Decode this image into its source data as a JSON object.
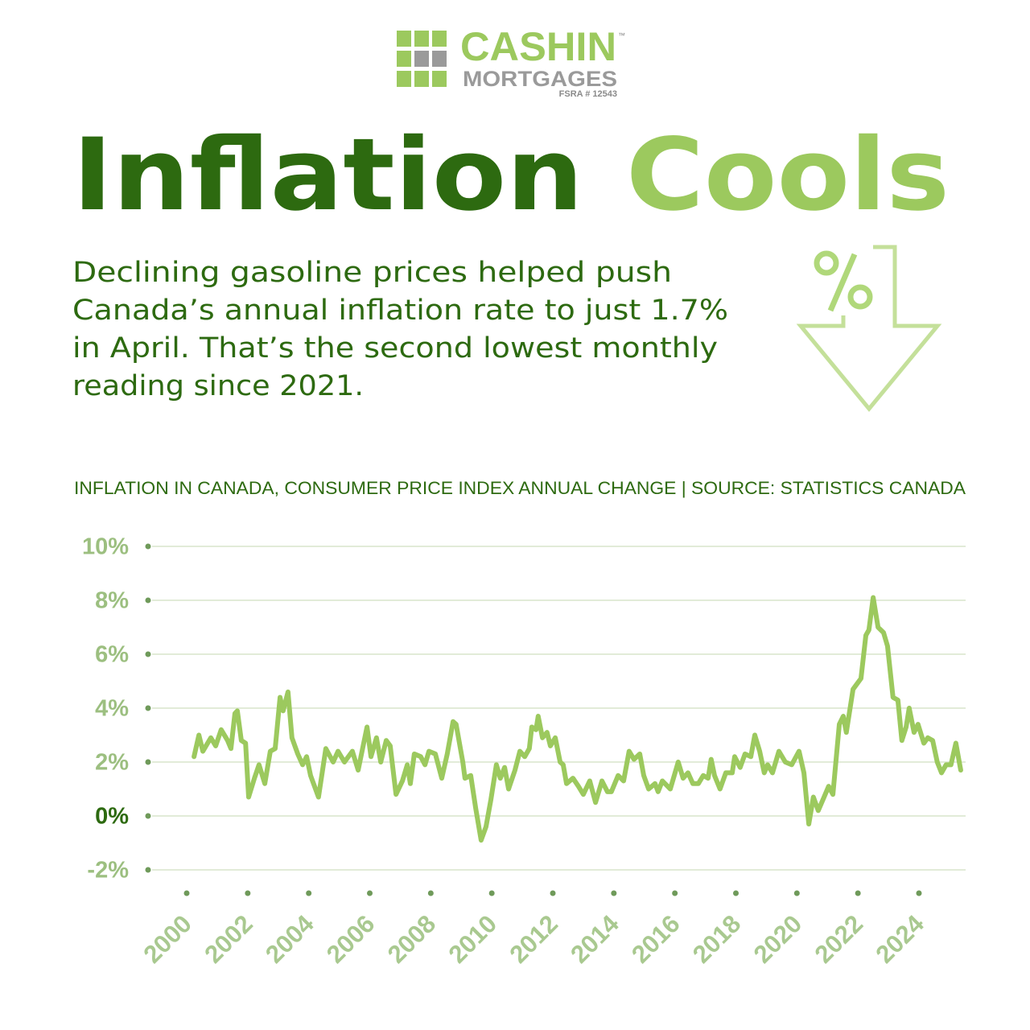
{
  "logo": {
    "name": "CASHIN",
    "tm": "™",
    "sub": "MORTGAGES",
    "license": "FSRA # 12543"
  },
  "headline": [
    "Inflation",
    "Cools"
  ],
  "description": [
    "Declining gasoline prices helped push",
    "Canada’s annual inflation rate to just 1.7%",
    "in April. That’s the second lowest monthly",
    "reading since 2021."
  ],
  "chart_data": {
    "type": "line",
    "title": "INFLATION IN CANADA, CONSUMER PRICE INDEX ANNUAL CHANGE | SOURCE: STATISTICS CANADA",
    "color": "#9cc95e",
    "grid": true,
    "xlim": [
      1998.76,
      2025.53
    ],
    "ylim": [
      -2,
      10
    ],
    "xticks": [
      2000,
      2002,
      2004,
      2006,
      2008,
      2010,
      2012,
      2014,
      2016,
      2018,
      2020,
      2022,
      2024
    ],
    "yticks": [
      {
        "value": -2,
        "label": "-2%"
      },
      {
        "value": 0,
        "label": "0%"
      },
      {
        "value": 2,
        "label": "2%"
      },
      {
        "value": 4,
        "label": "4%"
      },
      {
        "value": 6,
        "label": "6%"
      },
      {
        "value": 8,
        "label": "8%"
      },
      {
        "value": 10,
        "label": "10%"
      }
    ],
    "x": [
      2000.24,
      2000.4,
      2000.53,
      2000.79,
      2000.95,
      2001.13,
      2001.34,
      2001.45,
      2001.58,
      2001.66,
      2001.79,
      2001.93,
      2002.03,
      2002.22,
      2002.37,
      2002.56,
      2002.74,
      2002.9,
      2003.06,
      2003.16,
      2003.32,
      2003.45,
      2003.64,
      2003.8,
      2003.93,
      2004.06,
      2004.32,
      2004.56,
      2004.8,
      2004.96,
      2005.17,
      2005.43,
      2005.62,
      2005.91,
      2006.04,
      2006.22,
      2006.36,
      2006.54,
      2006.67,
      2006.86,
      2007.07,
      2007.23,
      2007.33,
      2007.46,
      2007.67,
      2007.81,
      2007.94,
      2008.15,
      2008.36,
      2008.54,
      2008.73,
      2008.83,
      2009.05,
      2009.12,
      2009.31,
      2009.47,
      2009.65,
      2009.81,
      2009.97,
      2010.15,
      2010.28,
      2010.42,
      2010.55,
      2010.76,
      2010.92,
      2011.08,
      2011.23,
      2011.31,
      2011.45,
      2011.52,
      2011.66,
      2011.81,
      2011.92,
      2012.08,
      2012.24,
      2012.34,
      2012.45,
      2012.66,
      2012.84,
      2013.0,
      2013.21,
      2013.4,
      2013.61,
      2013.79,
      2013.92,
      2014.14,
      2014.32,
      2014.5,
      2014.66,
      2014.85,
      2014.98,
      2015.14,
      2015.35,
      2015.45,
      2015.59,
      2015.85,
      2016.11,
      2016.27,
      2016.43,
      2016.59,
      2016.77,
      2016.93,
      2017.09,
      2017.19,
      2017.3,
      2017.48,
      2017.67,
      2017.88,
      2017.96,
      2018.14,
      2018.3,
      2018.49,
      2018.62,
      2018.78,
      2018.93,
      2019.04,
      2019.2,
      2019.41,
      2019.62,
      2019.83,
      2020.07,
      2020.23,
      2020.39,
      2020.54,
      2020.7,
      2020.89,
      2021.04,
      2021.18,
      2021.39,
      2021.52,
      2021.62,
      2021.84,
      2022.1,
      2022.26,
      2022.36,
      2022.5,
      2022.66,
      2022.84,
      2022.97,
      2023.15,
      2023.31,
      2023.44,
      2023.58,
      2023.68,
      2023.84,
      2023.97,
      2024.16,
      2024.29,
      2024.45,
      2024.6,
      2024.74,
      2024.89,
      2025.05,
      2025.21,
      2025.37
    ],
    "values": [
      2.2,
      3.0,
      2.4,
      2.9,
      2.6,
      3.2,
      2.8,
      2.5,
      3.8,
      3.9,
      2.8,
      2.7,
      0.7,
      1.4,
      1.9,
      1.2,
      2.4,
      2.5,
      4.4,
      3.9,
      4.6,
      2.9,
      2.3,
      1.9,
      2.2,
      1.5,
      0.7,
      2.5,
      2.0,
      2.4,
      2.0,
      2.4,
      1.7,
      3.3,
      2.2,
      2.9,
      2.0,
      2.8,
      2.6,
      0.8,
      1.3,
      1.9,
      1.2,
      2.3,
      2.2,
      1.9,
      2.4,
      2.3,
      1.4,
      2.3,
      3.5,
      3.4,
      2.0,
      1.4,
      1.5,
      0.3,
      -0.9,
      -0.4,
      0.6,
      1.9,
      1.4,
      1.8,
      1.0,
      1.7,
      2.4,
      2.2,
      2.5,
      3.3,
      3.2,
      3.7,
      2.9,
      3.1,
      2.6,
      2.9,
      2.0,
      1.9,
      1.2,
      1.4,
      1.1,
      0.8,
      1.3,
      0.5,
      1.3,
      0.9,
      0.9,
      1.5,
      1.3,
      2.4,
      2.1,
      2.3,
      1.5,
      1.0,
      1.2,
      0.9,
      1.3,
      1.0,
      2.0,
      1.4,
      1.6,
      1.2,
      1.2,
      1.5,
      1.4,
      2.1,
      1.5,
      1.0,
      1.6,
      1.6,
      2.2,
      1.8,
      2.3,
      2.2,
      3.0,
      2.4,
      1.6,
      1.9,
      1.6,
      2.4,
      2.0,
      1.9,
      2.4,
      1.6,
      -0.3,
      0.7,
      0.2,
      0.7,
      1.1,
      0.8,
      3.4,
      3.7,
      3.1,
      4.7,
      5.1,
      6.7,
      6.9,
      8.1,
      7.0,
      6.8,
      6.3,
      4.4,
      4.3,
      2.8,
      3.3,
      4.0,
      3.1,
      3.4,
      2.7,
      2.9,
      2.8,
      2.0,
      1.6,
      1.9,
      1.9,
      2.7,
      1.7
    ]
  }
}
